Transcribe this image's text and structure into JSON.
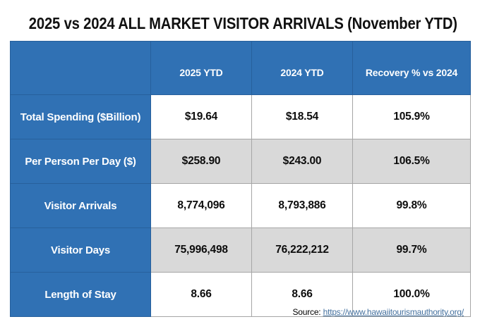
{
  "title": "2025 vs 2024 ALL MARKET VISITOR ARRIVALS (November YTD)",
  "chart_data": {
    "type": "table",
    "title": "2025 vs 2024 ALL MARKET VISITOR ARRIVALS (November YTD)",
    "columns": [
      "",
      "2025 YTD",
      "2024 YTD",
      "Recovery % vs 2024"
    ],
    "rows": [
      [
        "Total Spending ($Billion)",
        "$19.64",
        "$18.54",
        "105.9%"
      ],
      [
        "Per Person Per Day ($)",
        "$258.90",
        "$243.00",
        "106.5%"
      ],
      [
        "Visitor Arrivals",
        "8,774,096",
        "8,793,886",
        "99.8%"
      ],
      [
        "Visitor Days",
        "75,996,498",
        "76,222,212",
        "99.7%"
      ],
      [
        "Length of Stay",
        "8.66",
        "8.66",
        "100.0%"
      ]
    ]
  },
  "source": {
    "prefix": "Source:",
    "url": "https://www.hawaiitourismauthority.org/"
  },
  "colors": {
    "header_blue": "#3071b4",
    "blue_cell_border": "#27609c",
    "alt_row_gray": "#d9d9d9",
    "cell_border_gray": "#a6a6a6",
    "link_blue": "#44719f",
    "title_color": "#111111"
  }
}
